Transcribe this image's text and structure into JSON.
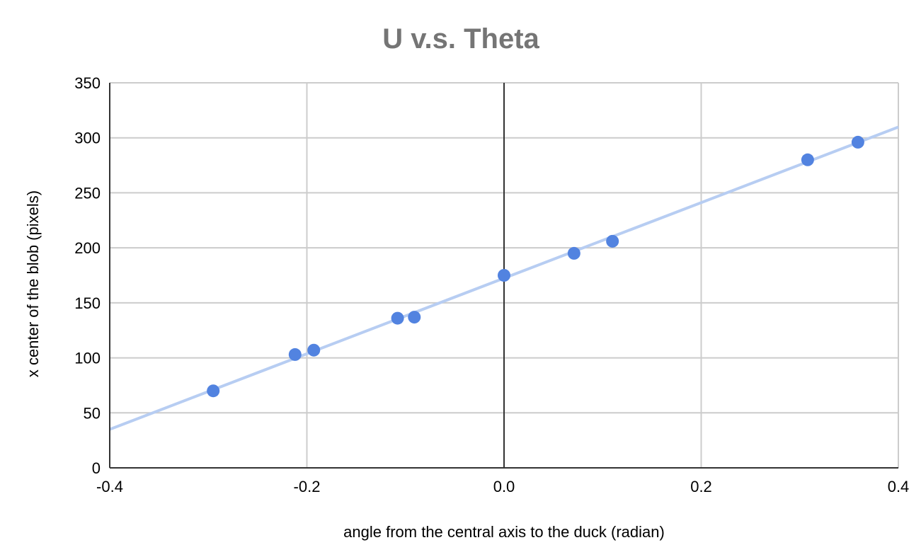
{
  "chart_data": {
    "type": "scatter",
    "title": "U v.s. Theta",
    "xlabel": "angle from the central axis  to the duck (radian)",
    "ylabel": "x center of the blob (pixels)",
    "xlim": [
      -0.4,
      0.4
    ],
    "ylim": [
      0,
      350
    ],
    "x_ticks": [
      -0.4,
      -0.2,
      0.0,
      0.2,
      0.4
    ],
    "x_tick_labels": [
      "-0.4",
      "-0.2",
      "0.0",
      "0.2",
      "0.4"
    ],
    "y_ticks": [
      0,
      50,
      100,
      150,
      200,
      250,
      300,
      350
    ],
    "y_tick_labels": [
      "0",
      "50",
      "100",
      "150",
      "200",
      "250",
      "300",
      "350"
    ],
    "grid": true,
    "legend": "none",
    "series": [
      {
        "points": [
          {
            "x": -0.295,
            "y": 70
          },
          {
            "x": -0.212,
            "y": 103
          },
          {
            "x": -0.193,
            "y": 107
          },
          {
            "x": -0.108,
            "y": 136
          },
          {
            "x": -0.091,
            "y": 137
          },
          {
            "x": 0.0,
            "y": 175
          },
          {
            "x": 0.071,
            "y": 195
          },
          {
            "x": 0.11,
            "y": 206
          },
          {
            "x": 0.308,
            "y": 280
          },
          {
            "x": 0.359,
            "y": 296
          }
        ],
        "color": "#5283e0"
      }
    ],
    "trendline": {
      "type": "linear",
      "slope": 343.5,
      "intercept": 172.4,
      "color": "#b7cdf2"
    },
    "colors": {
      "title": "#757575",
      "grid": "#cccccc",
      "axis": "#333333"
    }
  }
}
